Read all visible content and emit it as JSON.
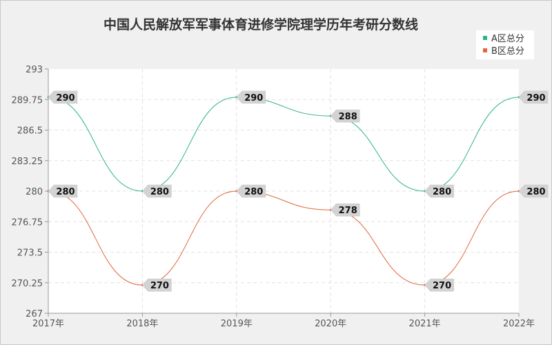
{
  "chart_data": {
    "type": "line",
    "title": "中国人民解放军军事体育进修学院理学历年考研分数线",
    "xlabel": "",
    "ylabel": "",
    "x": [
      "2017年",
      "2018年",
      "2019年",
      "2020年",
      "2021年",
      "2022年"
    ],
    "ylim": [
      267,
      293
    ],
    "yticks": [
      "293",
      "289.75",
      "286.5",
      "283.25",
      "280",
      "276.75",
      "273.5",
      "270.25",
      "267"
    ],
    "grid": true,
    "legend_position": "top-right",
    "series": [
      {
        "name": "A区总分",
        "color": "#2bb38a",
        "values": [
          290,
          280,
          290,
          288,
          280,
          290
        ]
      },
      {
        "name": "B区总分",
        "color": "#e0673a",
        "values": [
          280,
          270,
          280,
          278,
          270,
          280
        ]
      }
    ]
  }
}
